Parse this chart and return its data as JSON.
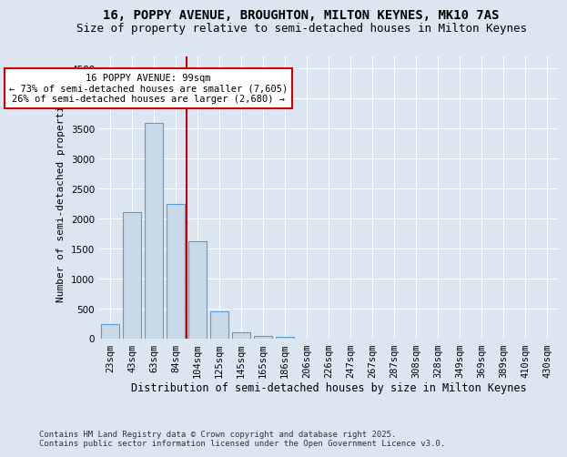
{
  "title1": "16, POPPY AVENUE, BROUGHTON, MILTON KEYNES, MK10 7AS",
  "title2": "Size of property relative to semi-detached houses in Milton Keynes",
  "xlabel": "Distribution of semi-detached houses by size in Milton Keynes",
  "ylabel": "Number of semi-detached properties",
  "categories": [
    "23sqm",
    "43sqm",
    "63sqm",
    "84sqm",
    "104sqm",
    "125sqm",
    "145sqm",
    "165sqm",
    "186sqm",
    "206sqm",
    "226sqm",
    "247sqm",
    "267sqm",
    "287sqm",
    "308sqm",
    "328sqm",
    "349sqm",
    "369sqm",
    "389sqm",
    "410sqm",
    "430sqm"
  ],
  "values": [
    250,
    2100,
    3600,
    2250,
    1625,
    450,
    100,
    50,
    30,
    0,
    0,
    0,
    0,
    0,
    0,
    0,
    0,
    0,
    0,
    0,
    0
  ],
  "bar_color": "#c9d9e8",
  "bar_edge_color": "#5b9bd5",
  "annotation_text": "16 POPPY AVENUE: 99sqm\n← 73% of semi-detached houses are smaller (7,605)\n26% of semi-detached houses are larger (2,680) →",
  "annotation_box_color": "#ffffff",
  "annotation_box_edge": "#cc0000",
  "marker_line_color": "#cc0000",
  "ylim": [
    0,
    4700
  ],
  "yticks": [
    0,
    500,
    1000,
    1500,
    2000,
    2500,
    3000,
    3500,
    4000,
    4500
  ],
  "background_color": "#dce6f1",
  "grid_color": "#ffffff",
  "footer1": "Contains HM Land Registry data © Crown copyright and database right 2025.",
  "footer2": "Contains public sector information licensed under the Open Government Licence v3.0.",
  "title1_fontsize": 10,
  "title2_fontsize": 9,
  "xlabel_fontsize": 8.5,
  "ylabel_fontsize": 8,
  "tick_fontsize": 7.5,
  "annotation_fontsize": 7.5,
  "footer_fontsize": 6.5
}
